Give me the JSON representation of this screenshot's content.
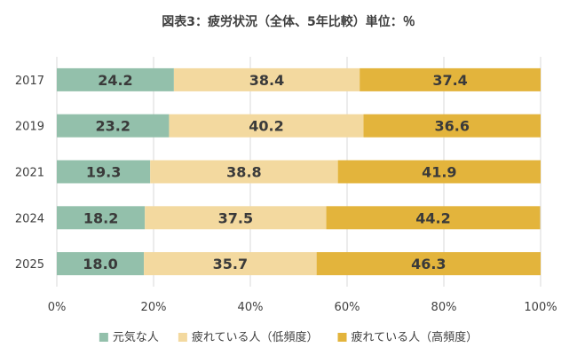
{
  "chart_data": {
    "type": "bar",
    "orientation": "horizontal",
    "stacked": "percent",
    "title": "図表3：疲労状況（全体、5年比較）単位：％",
    "categories": [
      "2017",
      "2019",
      "2021",
      "2024",
      "2025"
    ],
    "series": [
      {
        "name": "元気な人",
        "color": "#93c0ab",
        "values": [
          24.2,
          23.2,
          19.3,
          18.2,
          18.0
        ]
      },
      {
        "name": "疲れている人（低頻度）",
        "color": "#f3d99f",
        "values": [
          38.4,
          40.2,
          38.8,
          37.5,
          35.7
        ]
      },
      {
        "name": "疲れている人（高頻度）",
        "color": "#e3b43c",
        "values": [
          37.4,
          36.6,
          41.9,
          44.2,
          46.3
        ]
      }
    ],
    "xlim": [
      0,
      100
    ],
    "xticks": [
      "0%",
      "20%",
      "40%",
      "60%",
      "80%",
      "100%"
    ],
    "grid": "vertical",
    "legend": "bottom"
  }
}
